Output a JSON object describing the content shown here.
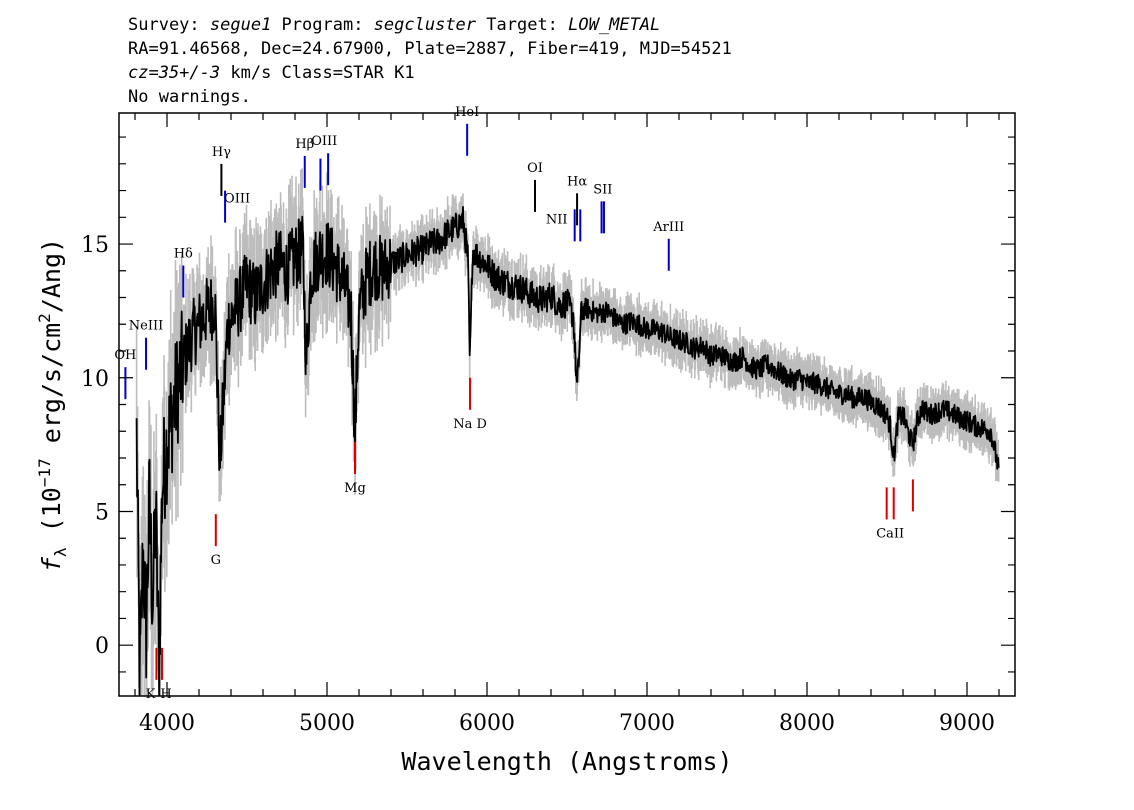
{
  "header": {
    "line1": {
      "survey_label": "Survey: ",
      "survey": "segue1",
      "program_label": " Program: ",
      "program": "segcluster",
      "target_label": " Target: ",
      "target": "LOW_METAL"
    },
    "line2": "RA=91.46568, Dec=24.67900, Plate=2887, Fiber=419, MJD=54521",
    "line3": {
      "cz": "cz=35+/-3",
      "rest": " km/s Class=STAR K1"
    },
    "line4": "No warnings."
  },
  "colors": {
    "flux": "#000000",
    "error_band": "#bdbdbd",
    "emission": "#0000cc",
    "absorption": "#dd0000",
    "sky_lines": "#000000"
  },
  "chart_data": {
    "type": "line",
    "xlabel": "Wavelength (Angstroms)",
    "ylabel": "f_λ (10^-17 erg/s/cm^2/Ang)",
    "ylabel_parts": {
      "f": "f",
      "sub": "λ",
      "pre": " (10",
      "exp": "−17",
      "mid": " erg/s/cm",
      "exp2": "2",
      "post": "/Ang)"
    },
    "xlim": [
      3700,
      9300
    ],
    "ylim": [
      -1.9,
      19.9
    ],
    "xticks": [
      4000,
      5000,
      6000,
      7000,
      8000,
      9000
    ],
    "yticks": [
      0,
      5,
      10,
      15
    ],
    "x_minor_step": 200,
    "y_minor_step": 1,
    "grid": false,
    "series": [
      {
        "x": [
          3810,
          3830,
          3850,
          3870,
          3890,
          3910,
          3930,
          3950,
          3970,
          4000,
          4030,
          4060,
          4100,
          4150,
          4200,
          4250,
          4300,
          4330,
          4380,
          4450,
          4500,
          4550,
          4600,
          4650,
          4700,
          4750,
          4800,
          4850,
          4870,
          4900,
          4950,
          5000,
          5050,
          5100,
          5150,
          5175,
          5200,
          5250,
          5300,
          5350,
          5400,
          5450,
          5500,
          5550,
          5600,
          5650,
          5700,
          5750,
          5800,
          5850,
          5880,
          5893,
          5910,
          5950,
          6000,
          6050,
          6100,
          6150,
          6200,
          6250,
          6300,
          6350,
          6400,
          6450,
          6500,
          6540,
          6563,
          6590,
          6620,
          6650,
          6700,
          6750,
          6800,
          6850,
          6900,
          6950,
          7000,
          7050,
          7100,
          7150,
          7200,
          7250,
          7300,
          7350,
          7400,
          7450,
          7500,
          7550,
          7600,
          7650,
          7700,
          7750,
          7800,
          7850,
          7900,
          7950,
          8000,
          8050,
          8100,
          8150,
          8200,
          8250,
          8300,
          8350,
          8400,
          8450,
          8498,
          8520,
          8542,
          8570,
          8600,
          8640,
          8662,
          8690,
          8720,
          8760,
          8800,
          8850,
          8900,
          8950,
          9000,
          9050,
          9100,
          9150,
          9200
        ],
        "values": [
          7.8,
          -1.5,
          3.5,
          0.5,
          5.5,
          1.5,
          5.0,
          -1.0,
          6.0,
          7.5,
          8.5,
          9.5,
          10.5,
          11.5,
          12.0,
          12.5,
          12.8,
          6.8,
          12.0,
          12.8,
          13.5,
          13.0,
          13.5,
          14.0,
          14.3,
          14.0,
          14.5,
          14.8,
          10.5,
          14.0,
          14.6,
          14.7,
          14.2,
          13.6,
          12.5,
          8.0,
          12.5,
          13.8,
          14.2,
          14.0,
          14.3,
          14.4,
          14.6,
          14.7,
          14.8,
          15.0,
          15.1,
          15.4,
          15.6,
          15.9,
          14.5,
          10.5,
          14.8,
          14.5,
          14.2,
          13.8,
          13.6,
          13.5,
          13.4,
          13.2,
          13.0,
          12.9,
          13.1,
          12.7,
          12.8,
          12.3,
          9.5,
          12.5,
          12.6,
          12.5,
          12.4,
          12.5,
          12.2,
          12.0,
          12.1,
          12.0,
          11.8,
          11.8,
          11.7,
          11.5,
          11.4,
          11.3,
          11.1,
          11.2,
          10.8,
          10.9,
          10.7,
          10.6,
          10.8,
          10.4,
          10.3,
          10.5,
          10.3,
          10.1,
          9.9,
          10.0,
          9.8,
          9.8,
          9.7,
          9.5,
          9.4,
          9.4,
          9.2,
          9.3,
          9.1,
          8.9,
          8.6,
          8.2,
          7.0,
          8.5,
          8.6,
          7.8,
          7.5,
          8.4,
          8.9,
          8.6,
          8.7,
          8.8,
          8.7,
          8.5,
          8.4,
          8.2,
          8.1,
          8.0,
          6.5
        ]
      }
    ],
    "lines": [
      {
        "label": "OH",
        "x": 3740,
        "type": "emission",
        "y": 9.2
      },
      {
        "label": "NeIII",
        "x": 3869,
        "type": "emission",
        "y": 10.3
      },
      {
        "label": "Hδ",
        "x": 4102,
        "type": "emission",
        "y": 13.0
      },
      {
        "label": "Hγ",
        "x": 4340,
        "type": "sky",
        "y": 16.8
      },
      {
        "label": "OIII",
        "x": 4363,
        "type": "emission",
        "y": 15.8
      },
      {
        "label": "Hβ",
        "x": 4861,
        "type": "emission",
        "y": 17.1
      },
      {
        "label": "OIII",
        "x": 4959,
        "type": "emission",
        "y": 17.0
      },
      {
        "label": "OIII",
        "x": 5007,
        "type": "emission",
        "y": 17.2
      },
      {
        "label": "HeI",
        "x": 5876,
        "type": "emission",
        "y": 18.3
      },
      {
        "label": "OI",
        "x": 6300,
        "type": "sky",
        "y": 16.2
      },
      {
        "label": "NII",
        "x": 6548,
        "type": "emission",
        "y": 15.1
      },
      {
        "label": "Hα",
        "x": 6563,
        "type": "sky",
        "y": 15.7
      },
      {
        "label": "NII",
        "x": 6583,
        "type": "emission",
        "y": 15.1
      },
      {
        "label": "SII",
        "x": 6716,
        "type": "emission",
        "y": 15.4
      },
      {
        "label": "SII",
        "x": 6731,
        "type": "emission",
        "y": 15.4
      },
      {
        "label": "ArIII",
        "x": 7136,
        "type": "emission",
        "y": 14.0
      },
      {
        "label": "K",
        "x": 3934,
        "type": "absorption",
        "y": -0.1
      },
      {
        "label": "H",
        "x": 3969,
        "type": "absorption",
        "y": -0.1
      },
      {
        "label": "G",
        "x": 4305,
        "type": "absorption",
        "y": 4.9
      },
      {
        "label": "Mg",
        "x": 5175,
        "type": "absorption",
        "y": 7.6
      },
      {
        "label": "Na D",
        "x": 5894,
        "type": "absorption",
        "y": 10.0
      },
      {
        "label": "CaII",
        "x": 8498,
        "type": "absorption",
        "y": 5.9
      },
      {
        "label": "CaII",
        "x": 8542,
        "type": "absorption",
        "y": 5.9
      },
      {
        "label": "CaII",
        "x": 8662,
        "type": "absorption",
        "y": 6.2
      }
    ]
  }
}
